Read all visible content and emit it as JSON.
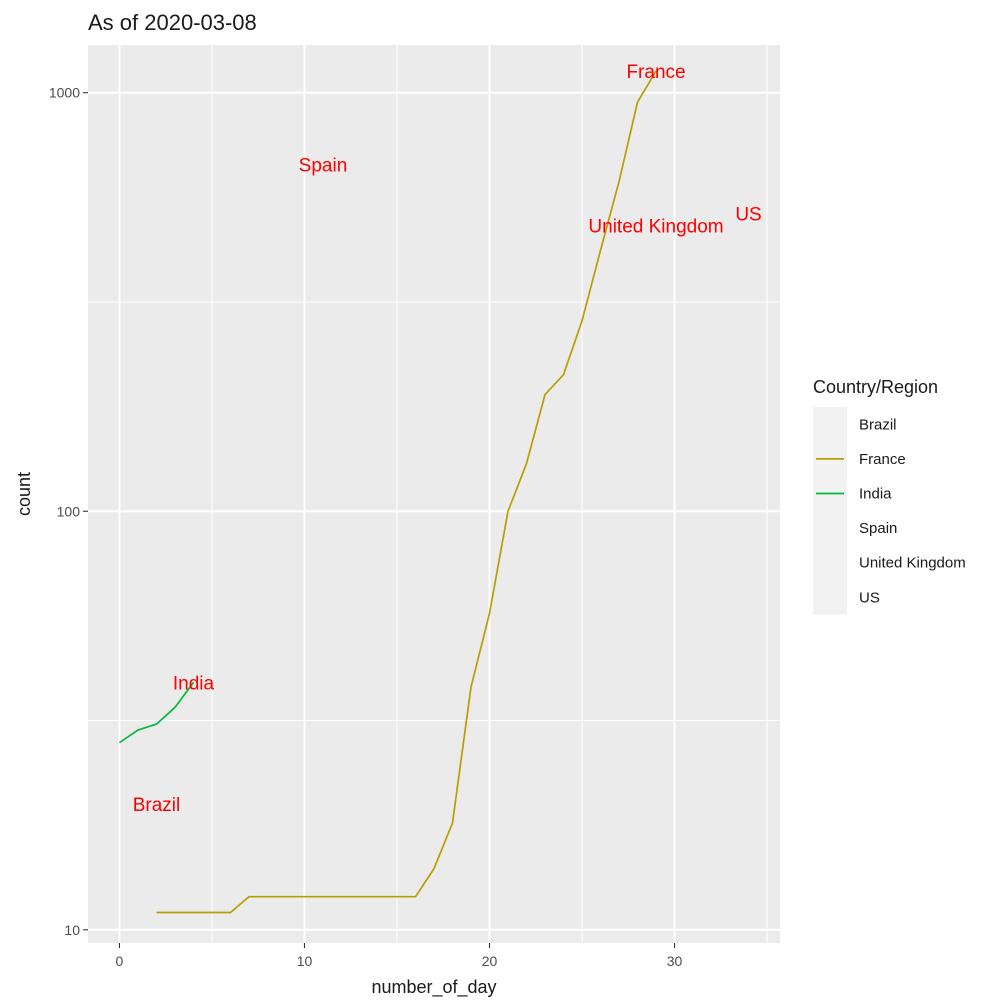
{
  "chart_data": {
    "type": "line",
    "title": "As of 2020-03-08",
    "xlabel": "number_of_day",
    "ylabel": "count",
    "y_scale": "log10",
    "xlim": [
      -1.7,
      35.7
    ],
    "ylim": [
      9.3,
      1300
    ],
    "x_ticks": [
      0,
      10,
      20,
      30
    ],
    "y_ticks": [
      10,
      100,
      1000
    ],
    "legend": {
      "title": "Country/Region",
      "position": "right",
      "items": [
        {
          "name": "Brazil",
          "color": "#F8766D"
        },
        {
          "name": "France",
          "color": "#B79F00"
        },
        {
          "name": "India",
          "color": "#00BA38"
        },
        {
          "name": "Spain",
          "color": "#00BFC4"
        },
        {
          "name": "United Kingdom",
          "color": "#619CFF"
        },
        {
          "name": "US",
          "color": "#F564E3"
        }
      ]
    },
    "series": [
      {
        "name": "Brazil",
        "color": "#F8766D",
        "x": [],
        "y": []
      },
      {
        "name": "France",
        "color": "#B79F00",
        "x": [
          2,
          3,
          4,
          5,
          6,
          7,
          8,
          9,
          10,
          11,
          12,
          13,
          14,
          15,
          16,
          17,
          18,
          19,
          20,
          21,
          22,
          23,
          24,
          25,
          26,
          27,
          28,
          29
        ],
        "y": [
          11,
          11,
          11,
          11,
          11,
          12,
          12,
          12,
          12,
          12,
          12,
          12,
          12,
          12,
          12,
          14,
          18,
          38,
          57,
          100,
          130,
          190,
          212,
          285,
          420,
          613,
          949,
          1126
        ]
      },
      {
        "name": "India",
        "color": "#00BA38",
        "x": [
          0,
          1,
          2,
          3,
          4
        ],
        "y": [
          28,
          30,
          31,
          34,
          39
        ]
      },
      {
        "name": "Spain",
        "color": "#00BFC4",
        "x": [],
        "y": []
      },
      {
        "name": "United Kingdom",
        "color": "#619CFF",
        "x": [],
        "y": []
      },
      {
        "name": "US",
        "color": "#F564E3",
        "x": [],
        "y": []
      }
    ],
    "annotations": [
      {
        "text": "France",
        "x": 29,
        "y": 1126
      },
      {
        "text": "Spain",
        "x": 11,
        "y": 674
      },
      {
        "text": "United Kingdom",
        "x": 29,
        "y": 482
      },
      {
        "text": "US",
        "x": 34,
        "y": 514
      },
      {
        "text": "India",
        "x": 4,
        "y": 39
      },
      {
        "text": "Brazil",
        "x": 2,
        "y": 20
      }
    ]
  }
}
